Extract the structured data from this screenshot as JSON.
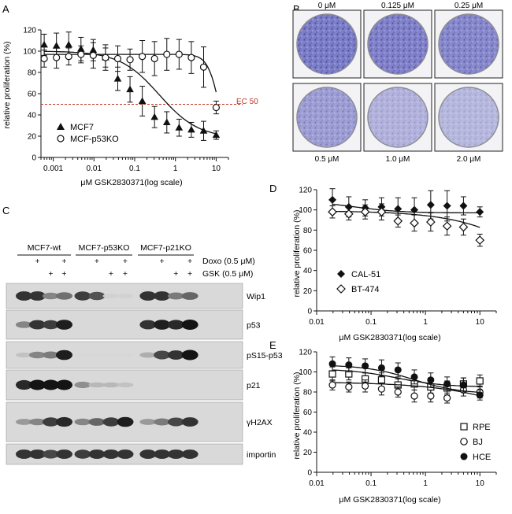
{
  "panels": {
    "A": {
      "letter": "A"
    },
    "B": {
      "letter": "B"
    },
    "C": {
      "letter": "C"
    },
    "D": {
      "letter": "D"
    },
    "E": {
      "letter": "E"
    }
  },
  "panelA": {
    "ylabel": "relative proliferation (%)",
    "xlabel": "μM GSK2830371(log scale)",
    "ec50_label": "EC 50",
    "ec50_value": 50,
    "yticks": [
      "0",
      "20",
      "40",
      "60",
      "80",
      "100",
      "120"
    ],
    "xticks": [
      "0.001",
      "0.01",
      "0.1",
      "1",
      "10"
    ],
    "legend": [
      {
        "name": "MCF7",
        "marker": "filled-triangle"
      },
      {
        "name": "MCF-p53KO",
        "marker": "open-circle"
      }
    ]
  },
  "panelB": {
    "wells": [
      {
        "label": "0 μM",
        "density": 1.0
      },
      {
        "label": "0.125 μM",
        "density": 0.97
      },
      {
        "label": "0.25 μM",
        "density": 0.9
      },
      {
        "label": "0.5 μM",
        "density": 0.72
      },
      {
        "label": "1.0 μM",
        "density": 0.55
      },
      {
        "label": "2.0 μM",
        "density": 0.5
      }
    ]
  },
  "panelC": {
    "groups": [
      "MCF7-wt",
      "MCF7-p53KO",
      "MCF7-p21KO"
    ],
    "treatments": [
      {
        "label": "Doxo (0.5 μM)",
        "marks": [
          false,
          true,
          false,
          true,
          false,
          true,
          false,
          true,
          false,
          true,
          false,
          true
        ]
      },
      {
        "label": "GSK (0.5 μM)",
        "marks": [
          false,
          false,
          true,
          true,
          false,
          false,
          true,
          true,
          false,
          false,
          true,
          true
        ]
      }
    ],
    "blots": [
      {
        "label": "Wip1",
        "bands": [
          0.85,
          0.85,
          0.45,
          0.55,
          0.8,
          0.7,
          0.08,
          0.08,
          0.85,
          0.85,
          0.5,
          0.6
        ]
      },
      {
        "label": "p53",
        "bands": [
          0.45,
          0.85,
          0.8,
          0.95,
          0.0,
          0.0,
          0.0,
          0.0,
          0.85,
          0.95,
          0.9,
          1.0
        ]
      },
      {
        "label": "pS15-p53",
        "bands": [
          0.15,
          0.45,
          0.5,
          0.95,
          0.05,
          0.05,
          0.05,
          0.05,
          0.25,
          0.75,
          0.85,
          1.0
        ]
      },
      {
        "label": "p21",
        "bands": [
          0.9,
          1.0,
          1.0,
          1.0,
          0.4,
          0.2,
          0.2,
          0.15,
          0.0,
          0.0,
          0.0,
          0.0
        ]
      },
      {
        "label": "γH2AX",
        "bands": [
          0.35,
          0.45,
          0.8,
          0.9,
          0.45,
          0.6,
          0.8,
          0.95,
          0.35,
          0.5,
          0.75,
          0.85
        ]
      },
      {
        "label": "importin",
        "bands": [
          0.85,
          0.85,
          0.75,
          0.85,
          0.8,
          0.85,
          0.85,
          0.85,
          0.85,
          0.85,
          0.85,
          0.85
        ]
      }
    ]
  },
  "panelD": {
    "ylabel": "relative proliferation (%)",
    "xlabel": "μM GSK2830371(log scale)",
    "yticks": [
      "0",
      "20",
      "40",
      "60",
      "80",
      "100",
      "120"
    ],
    "xticks": [
      "0.01",
      "0.1",
      "1",
      "10"
    ],
    "legend": [
      {
        "name": "CAL-51",
        "marker": "filled-diamond"
      },
      {
        "name": "BT-474",
        "marker": "open-diamond"
      }
    ]
  },
  "panelE": {
    "ylabel": "relative proliferation (%)",
    "xlabel": "μM GSK2830371(log scale)",
    "yticks": [
      "0",
      "20",
      "40",
      "60",
      "80",
      "100",
      "120"
    ],
    "xticks": [
      "0.01",
      "0.1",
      "1",
      "10"
    ],
    "legend": [
      {
        "name": "RPE",
        "marker": "open-square"
      },
      {
        "name": "BJ",
        "marker": "open-circle"
      },
      {
        "name": "HCE",
        "marker": "filled-circle"
      }
    ]
  },
  "chart_data": [
    {
      "id": "A",
      "type": "scatter",
      "title": "",
      "xlabel": "μM GSK2830371(log scale)",
      "ylabel": "relative proliferation (%)",
      "xscale": "log",
      "xlim": [
        0.0005,
        20
      ],
      "ylim": [
        0,
        120
      ],
      "hline": {
        "y": 50,
        "label": "EC 50"
      },
      "series": [
        {
          "name": "MCF7",
          "marker": "filled-triangle",
          "fit": {
            "top": 100,
            "bottom": 18,
            "ec50": 0.4,
            "hill": 0.9
          },
          "x": [
            0.0006,
            0.0012,
            0.0024,
            0.0048,
            0.0096,
            0.0192,
            0.0384,
            0.0768,
            0.1536,
            0.3072,
            0.6144,
            1.2288,
            2.4576,
            4.9152,
            10
          ],
          "y": [
            106,
            105,
            106,
            102,
            101,
            94,
            74,
            64,
            53,
            38,
            33,
            28,
            26,
            25,
            21
          ],
          "err": [
            10,
            12,
            12,
            11,
            10,
            12,
            11,
            12,
            14,
            10,
            10,
            8,
            7,
            9,
            4
          ]
        },
        {
          "name": "MCF-p53KO",
          "marker": "open-circle",
          "fit": {
            "top": 97,
            "bottom": 0,
            "ec50": 12,
            "hill": 3
          },
          "x": [
            0.0006,
            0.0012,
            0.0024,
            0.0048,
            0.0096,
            0.0192,
            0.0384,
            0.0768,
            0.1536,
            0.3072,
            0.6144,
            1.2288,
            2.4576,
            4.9152,
            10
          ],
          "y": [
            93,
            94,
            95,
            97,
            96,
            94,
            93,
            92,
            95,
            93,
            97,
            97,
            94,
            85,
            47
          ],
          "err": [
            8,
            10,
            8,
            8,
            12,
            9,
            12,
            10,
            15,
            16,
            15,
            14,
            15,
            19,
            6
          ]
        }
      ]
    },
    {
      "id": "D",
      "type": "scatter",
      "xlabel": "μM GSK2830371(log scale)",
      "ylabel": "relative proliferation (%)",
      "xscale": "log",
      "xlim": [
        0.01,
        20
      ],
      "ylim": [
        0,
        120
      ],
      "series": [
        {
          "name": "CAL-51",
          "marker": "filled-diamond",
          "fit": {
            "top": 109,
            "bottom": 97,
            "ec50": 0.05,
            "hill": 1
          },
          "x": [
            0.0195,
            0.039,
            0.078,
            0.156,
            0.3125,
            0.625,
            1.25,
            2.5,
            5,
            10
          ],
          "y": [
            110,
            103,
            102,
            103,
            101,
            100,
            105,
            104,
            104,
            98
          ],
          "err": [
            11,
            10,
            8,
            9,
            11,
            12,
            14,
            15,
            9,
            5
          ]
        },
        {
          "name": "BT-474",
          "marker": "open-diamond",
          "fit": {
            "top": 99,
            "bottom": 0,
            "ec50": 150,
            "hill": 0.6
          },
          "x": [
            0.0195,
            0.039,
            0.078,
            0.156,
            0.3125,
            0.625,
            1.25,
            2.5,
            5,
            10
          ],
          "y": [
            98,
            96,
            98,
            98,
            89,
            87,
            88,
            84,
            83,
            70
          ],
          "err": [
            6,
            6,
            7,
            8,
            6,
            8,
            9,
            9,
            8,
            6
          ]
        }
      ]
    },
    {
      "id": "E",
      "type": "scatter",
      "xlabel": "μM GSK2830371(log scale)",
      "ylabel": "relative proliferation (%)",
      "xscale": "log",
      "xlim": [
        0.01,
        20
      ],
      "ylim": [
        0,
        120
      ],
      "series": [
        {
          "name": "RPE",
          "marker": "open-square",
          "fit": {
            "top": 103,
            "bottom": 85,
            "ec50": 0.3,
            "hill": 1
          },
          "x": [
            0.0195,
            0.039,
            0.078,
            0.156,
            0.3125,
            0.625,
            1.25,
            2.5,
            5,
            10
          ],
          "y": [
            98,
            98,
            93,
            92,
            87,
            88,
            85,
            84,
            88,
            91
          ],
          "err": [
            7,
            6,
            6,
            7,
            6,
            6,
            6,
            7,
            6,
            6
          ]
        },
        {
          "name": "BJ",
          "marker": "open-circle",
          "fit": {
            "top": 90,
            "bottom": 0,
            "ec50": 300,
            "hill": 0.5
          },
          "x": [
            0.0195,
            0.039,
            0.078,
            0.156,
            0.3125,
            0.625,
            1.25,
            2.5,
            5,
            10
          ],
          "y": [
            87,
            85,
            86,
            83,
            80,
            76,
            76,
            74,
            82,
            80
          ],
          "err": [
            5,
            5,
            6,
            6,
            5,
            6,
            6,
            5,
            6,
            6
          ]
        },
        {
          "name": "HCE",
          "marker": "filled-circle",
          "fit": {
            "top": 107,
            "bottom": 78,
            "ec50": 0.6,
            "hill": 1
          },
          "x": [
            0.0195,
            0.039,
            0.078,
            0.156,
            0.3125,
            0.625,
            1.25,
            2.5,
            5,
            10
          ],
          "y": [
            108,
            107,
            106,
            104,
            102,
            95,
            92,
            88,
            87,
            77
          ],
          "err": [
            7,
            7,
            7,
            8,
            7,
            7,
            7,
            7,
            7,
            5
          ]
        }
      ]
    }
  ]
}
